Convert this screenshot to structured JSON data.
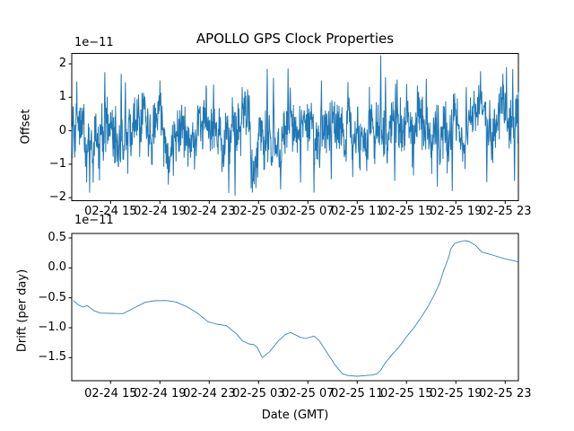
{
  "figure": {
    "title": "APOLLO GPS Clock Properties",
    "background_color": "#ffffff",
    "axis_color": "#000000",
    "text_color": "#000000",
    "series_color": "#1f77b4"
  },
  "chart_data": [
    {
      "type": "line",
      "name": "offset-vs-time",
      "title": "APOLLO GPS Clock Properties",
      "ylabel": "Offset",
      "xlabel": "",
      "y_offset_text": "1e−11",
      "units_note": "y values are multiples of 1e-11",
      "ylim": [
        -2.09,
        2.31
      ],
      "y_ticks": [
        {
          "value": 2,
          "label": "2"
        },
        {
          "value": 1,
          "label": "1"
        },
        {
          "value": 0,
          "label": "0"
        },
        {
          "value": -1,
          "label": "−1"
        },
        {
          "value": -2,
          "label": "−2"
        }
      ],
      "x_hours_range": [
        -0.15,
        36.07
      ],
      "x_ticks": [
        {
          "hours": 3,
          "label": "02-24 15"
        },
        {
          "hours": 7,
          "label": "02-24 19"
        },
        {
          "hours": 11,
          "label": "02-24 23"
        },
        {
          "hours": 15,
          "label": "02-25 03"
        },
        {
          "hours": 19,
          "label": "02-25 07"
        },
        {
          "hours": 23,
          "label": "02-25 11"
        },
        {
          "hours": 27,
          "label": "02-25 15"
        },
        {
          "hours": 31,
          "label": "02-25 19"
        },
        {
          "hours": 35,
          "label": "02-25 23"
        }
      ],
      "series_style": "dense-noise",
      "noise_summary": "High-rate clock offset noise centered on 0, typical band ±1.1e-11, extremes near ±2e-11, tallest spike ≈ +2.25e-11 near 02-25 11",
      "noise": {
        "seed": 20,
        "n": 1500,
        "ar": 0.92,
        "wander_sigma": 0.16,
        "noise_sigma": 0.36,
        "clip": [
          -2.0,
          2.26
        ],
        "spikes": [
          [
            1.3,
            -1.85
          ],
          [
            1.6,
            -1.55
          ],
          [
            2.54,
            1.75
          ],
          [
            3.85,
            1.7
          ],
          [
            4.2,
            1.45
          ],
          [
            7.0,
            1.5
          ],
          [
            8.1,
            -1.35
          ],
          [
            11.35,
            1.38
          ],
          [
            12.58,
            -1.86
          ],
          [
            13.1,
            -1.94
          ],
          [
            13.67,
            1.3
          ],
          [
            14.4,
            -1.72
          ],
          [
            15.7,
            1.85
          ],
          [
            16.2,
            1.58
          ],
          [
            17.4,
            1.86
          ],
          [
            18.4,
            -1.55
          ],
          [
            19.5,
            -1.85
          ],
          [
            20.1,
            1.5
          ],
          [
            20.9,
            -1.45
          ],
          [
            22.25,
            1.45
          ],
          [
            24.9,
            2.25
          ],
          [
            25.3,
            1.6
          ],
          [
            26.05,
            -1.5
          ],
          [
            27.0,
            1.4
          ],
          [
            28.6,
            1.55
          ],
          [
            29.5,
            -1.67
          ],
          [
            30.7,
            -1.8
          ],
          [
            31.85,
            1.3
          ],
          [
            33.5,
            -1.54
          ],
          [
            34.75,
            1.0
          ],
          [
            35.1,
            1.9
          ],
          [
            35.6,
            1.84
          ],
          [
            35.75,
            -1.5
          ]
        ]
      }
    },
    {
      "type": "line",
      "name": "drift-vs-time",
      "title": "",
      "ylabel": "Drift (per day)",
      "xlabel": "Date (GMT)",
      "y_offset_text": "1e−11",
      "units_note": "y values are multiples of 1e-11",
      "ylim": [
        -1.885,
        0.575
      ],
      "y_ticks": [
        {
          "value": 0.5,
          "label": "0.5"
        },
        {
          "value": 0.0,
          "label": "0.0"
        },
        {
          "value": -0.5,
          "label": "−0.5"
        },
        {
          "value": -1.0,
          "label": "−1.0"
        },
        {
          "value": -1.5,
          "label": "−1.5"
        }
      ],
      "x_hours_range": [
        -0.15,
        36.07
      ],
      "x_ticks": [
        {
          "hours": 3,
          "label": "02-24 15"
        },
        {
          "hours": 7,
          "label": "02-24 19"
        },
        {
          "hours": 11,
          "label": "02-24 23"
        },
        {
          "hours": 15,
          "label": "02-25 03"
        },
        {
          "hours": 19,
          "label": "02-25 07"
        },
        {
          "hours": 23,
          "label": "02-25 11"
        },
        {
          "hours": 27,
          "label": "02-25 15"
        },
        {
          "hours": 31,
          "label": "02-25 19"
        },
        {
          "hours": 35,
          "label": "02-25 23"
        }
      ],
      "points_hours_value": [
        [
          0.0,
          -0.55
        ],
        [
          0.4,
          -0.62
        ],
        [
          0.8,
          -0.655
        ],
        [
          1.1,
          -0.63
        ],
        [
          1.7,
          -0.72
        ],
        [
          2.2,
          -0.755
        ],
        [
          3.0,
          -0.76
        ],
        [
          4.0,
          -0.765
        ],
        [
          4.9,
          -0.67
        ],
        [
          5.8,
          -0.575
        ],
        [
          6.5,
          -0.55
        ],
        [
          7.5,
          -0.545
        ],
        [
          8.3,
          -0.57
        ],
        [
          9.2,
          -0.65
        ],
        [
          10.0,
          -0.75
        ],
        [
          10.9,
          -0.9
        ],
        [
          11.6,
          -0.94
        ],
        [
          12.4,
          -0.965
        ],
        [
          13.2,
          -1.1
        ],
        [
          13.7,
          -1.22
        ],
        [
          14.2,
          -1.27
        ],
        [
          14.6,
          -1.28
        ],
        [
          14.9,
          -1.33
        ],
        [
          15.3,
          -1.5
        ],
        [
          15.9,
          -1.4
        ],
        [
          16.6,
          -1.22
        ],
        [
          17.2,
          -1.11
        ],
        [
          17.6,
          -1.08
        ],
        [
          18.4,
          -1.16
        ],
        [
          18.8,
          -1.18
        ],
        [
          19.5,
          -1.14
        ],
        [
          19.9,
          -1.21
        ],
        [
          20.5,
          -1.4
        ],
        [
          21.2,
          -1.62
        ],
        [
          21.8,
          -1.77
        ],
        [
          22.3,
          -1.8
        ],
        [
          23.0,
          -1.81
        ],
        [
          23.6,
          -1.8
        ],
        [
          24.2,
          -1.79
        ],
        [
          24.6,
          -1.77
        ],
        [
          24.9,
          -1.71
        ],
        [
          25.3,
          -1.58
        ],
        [
          25.9,
          -1.43
        ],
        [
          26.4,
          -1.32
        ],
        [
          27.0,
          -1.15
        ],
        [
          27.6,
          -1.0
        ],
        [
          28.2,
          -0.82
        ],
        [
          28.7,
          -0.66
        ],
        [
          29.2,
          -0.47
        ],
        [
          29.7,
          -0.25
        ],
        [
          30.0,
          -0.05
        ],
        [
          30.4,
          0.17
        ],
        [
          30.6,
          0.32
        ],
        [
          30.9,
          0.41
        ],
        [
          31.3,
          0.435
        ],
        [
          31.7,
          0.455
        ],
        [
          32.1,
          0.44
        ],
        [
          32.6,
          0.375
        ],
        [
          33.1,
          0.265
        ],
        [
          33.8,
          0.225
        ],
        [
          34.2,
          0.2
        ],
        [
          35.0,
          0.15
        ],
        [
          35.8,
          0.115
        ],
        [
          36.05,
          0.1
        ]
      ]
    }
  ]
}
